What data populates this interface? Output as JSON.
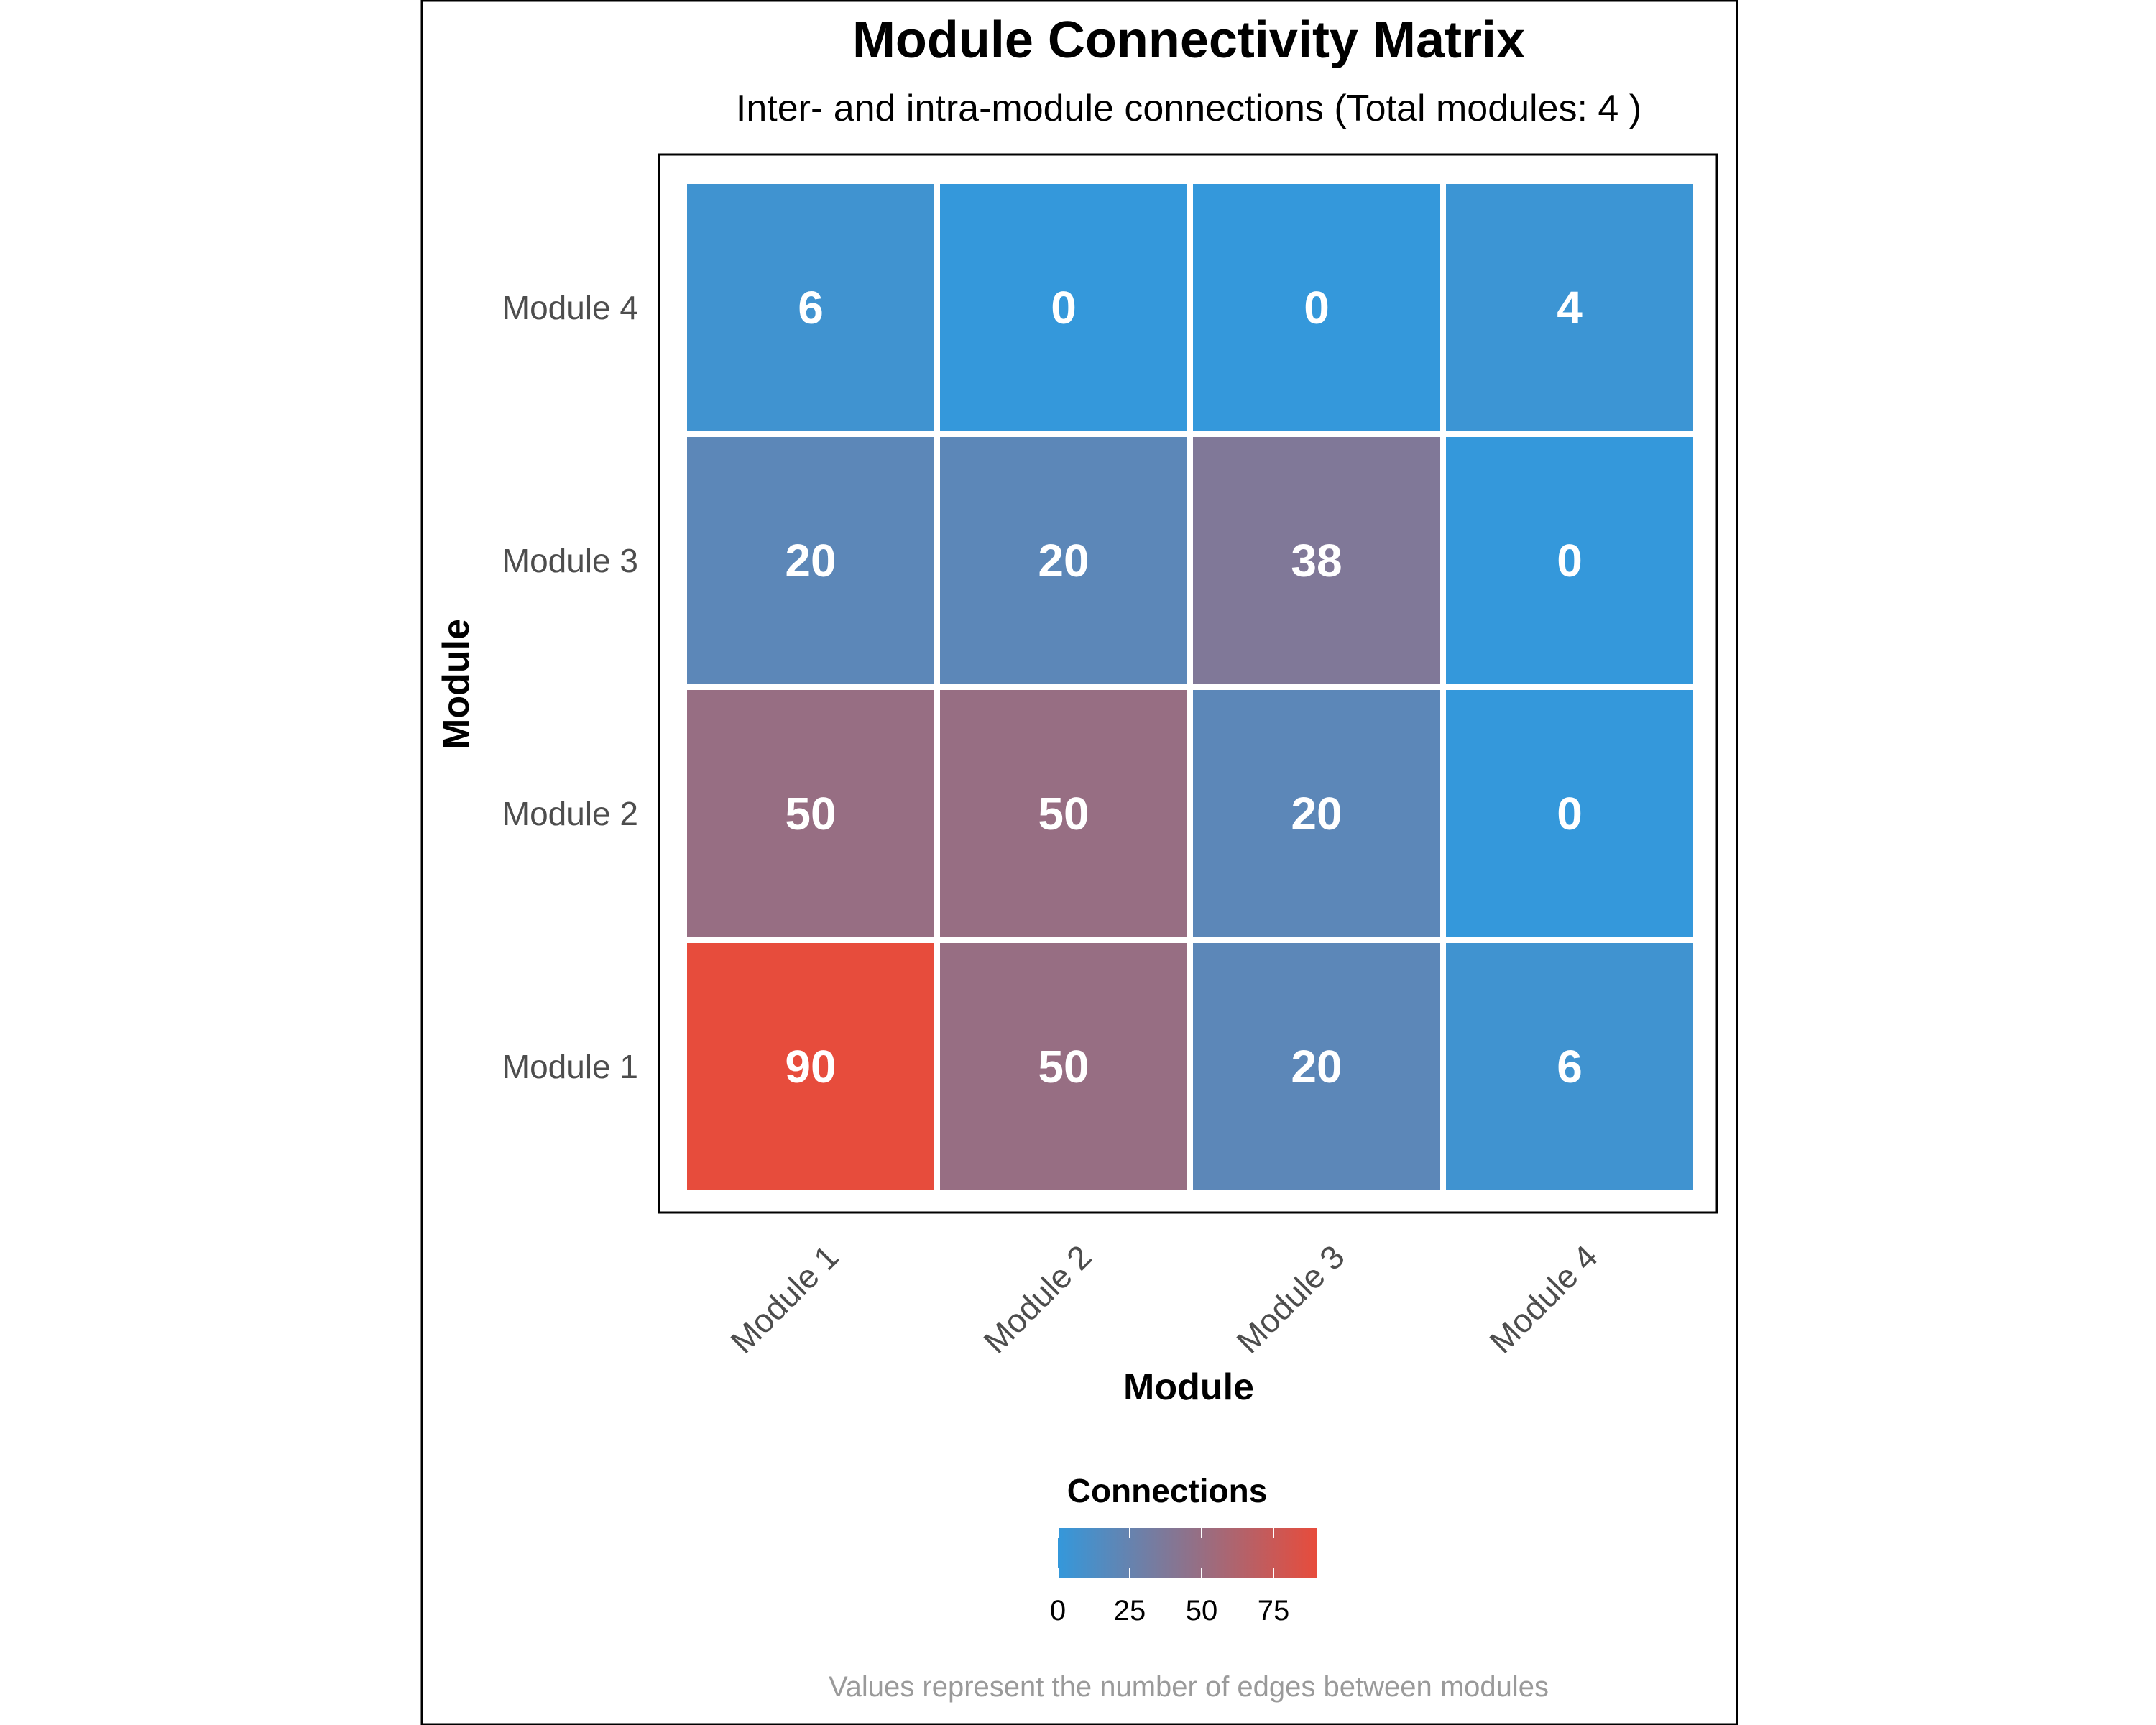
{
  "chart_data": {
    "type": "heatmap",
    "title": "Module Connectivity Matrix",
    "subtitle": "Inter- and intra-module connections (Total modules: 4 )",
    "xlabel": "Module",
    "ylabel": "Module",
    "x_categories": [
      "Module 1",
      "Module 2",
      "Module 3",
      "Module 4"
    ],
    "y_categories": [
      "Module 1",
      "Module 2",
      "Module 3",
      "Module 4"
    ],
    "values": [
      [
        90,
        50,
        20,
        6
      ],
      [
        50,
        50,
        20,
        0
      ],
      [
        20,
        20,
        38,
        0
      ],
      [
        6,
        0,
        0,
        4
      ]
    ],
    "legend": {
      "title": "Connections",
      "position": "bottom",
      "ticks": [
        0,
        25,
        50,
        75
      ],
      "range": [
        0,
        90
      ],
      "low_color": "#3498db",
      "high_color": "#e74c3c"
    },
    "caption": "Values represent the number of edges between modules"
  }
}
